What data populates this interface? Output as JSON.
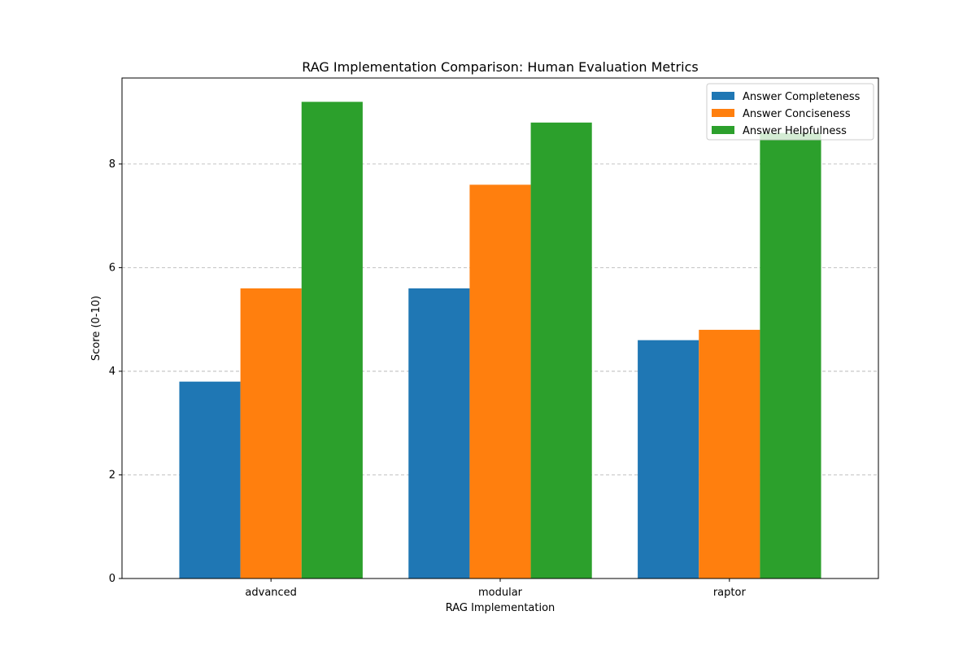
{
  "chart_data": {
    "type": "bar",
    "title": "RAG Implementation Comparison: Human Evaluation Metrics",
    "xlabel": "RAG Implementation",
    "ylabel": "Score (0-10)",
    "categories": [
      "advanced",
      "modular",
      "raptor"
    ],
    "series": [
      {
        "name": "Answer Completeness",
        "values": [
          3.8,
          5.6,
          4.6
        ],
        "color": "#1f77b4"
      },
      {
        "name": "Answer Conciseness",
        "values": [
          5.6,
          7.6,
          4.8
        ],
        "color": "#ff7f0e"
      },
      {
        "name": "Answer Helpfulness",
        "values": [
          9.2,
          8.8,
          8.6
        ],
        "color": "#2ca02c"
      }
    ],
    "ylim": [
      0,
      9.66
    ],
    "yticks": [
      0,
      2,
      4,
      6,
      8
    ],
    "grid": "y-dashed",
    "legend_position": "top-right"
  }
}
